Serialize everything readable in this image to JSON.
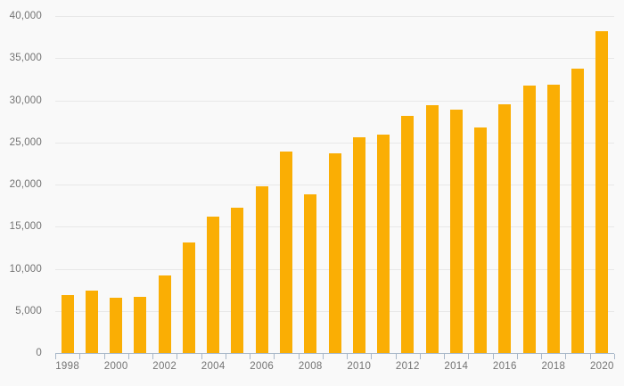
{
  "chart_data": {
    "type": "bar",
    "title": "",
    "xlabel": "",
    "ylabel": "",
    "categories": [
      1998,
      1999,
      2000,
      2001,
      2002,
      2003,
      2004,
      2005,
      2006,
      2007,
      2008,
      2009,
      2010,
      2011,
      2012,
      2013,
      2014,
      2015,
      2016,
      2017,
      2018,
      2019,
      2020
    ],
    "values": [
      6900,
      7400,
      6600,
      6700,
      9200,
      13100,
      16200,
      17300,
      19800,
      23900,
      18800,
      23700,
      25600,
      25900,
      28200,
      29400,
      28900,
      26800,
      29500,
      31800,
      31900,
      33800,
      38200
    ],
    "ylim": [
      0,
      40000
    ],
    "y_tick_step": 5000,
    "y_tick_labels": [
      "0",
      "5,000",
      "10,000",
      "15,000",
      "20,000",
      "25,000",
      "30,000",
      "35,000",
      "40,000"
    ],
    "x_tick_labels_shown": [
      "1998",
      "2000",
      "2002",
      "2004",
      "2006",
      "2008",
      "2010",
      "2012",
      "2014",
      "2016",
      "2018",
      "2020"
    ],
    "grid": true,
    "legend": false,
    "colors": {
      "bar": "#faae04",
      "background": "#f9f9f9",
      "gridline": "#e8e8e8",
      "axis": "#a9b8c9",
      "label_text": "#737373"
    }
  }
}
